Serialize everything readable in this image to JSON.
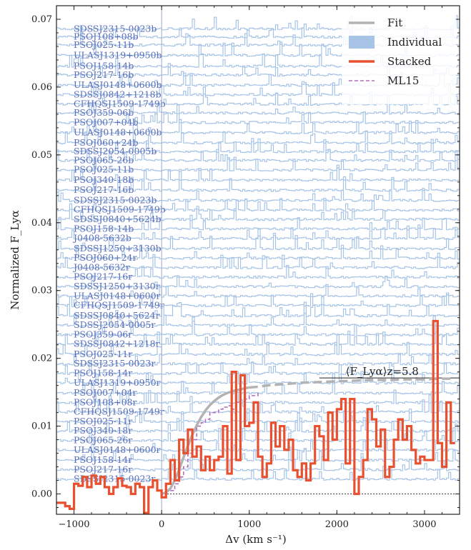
{
  "chart_data": {
    "type": "line",
    "xlabel": "Δv (km s⁻¹)",
    "ylabel": "Normalized F_Lyα",
    "xlim": [
      -1200,
      3400
    ],
    "ylim": [
      -0.003,
      0.072
    ],
    "xticks": [
      -1000,
      0,
      1000,
      2000,
      3000
    ],
    "xtick_labels": [
      "−1000",
      "0",
      "1000",
      "2000",
      "3000"
    ],
    "yticks": [
      0.0,
      0.01,
      0.02,
      0.03,
      0.04,
      0.05,
      0.06,
      0.07
    ],
    "ytick_labels": [
      "0.00",
      "0.01",
      "0.02",
      "0.03",
      "0.04",
      "0.05",
      "0.06",
      "0.07"
    ],
    "grid": false,
    "legend": {
      "placement": "top-right",
      "entries": [
        {
          "label": "Fit",
          "color": "#b3b3b3",
          "style": "solid-thick"
        },
        {
          "label": "Individual",
          "color": "#a7c4e6",
          "style": "filled"
        },
        {
          "label": "Stacked",
          "color": "#e8502f",
          "style": "solid-thick"
        },
        {
          "label": "ML15",
          "color": "#b36fbe",
          "style": "dashed"
        }
      ]
    },
    "annotation": {
      "text": "⟨F_Lyα⟩z=5.8",
      "value": 0.0171,
      "x_from": 1800,
      "x_to": 3400
    },
    "colors": {
      "stacked": "#e8502f",
      "fit": "#b3b3b3",
      "individual": "#a7c4e6",
      "ml15": "#b36fbe",
      "label": "#5b6fb8"
    },
    "individual_spectra": [
      {
        "label": "SDSSJ2315-0023b",
        "offset": 0.0686
      },
      {
        "label": "PSOJ108+08b",
        "offset": 0.0674
      },
      {
        "label": "PSOJ025-11b",
        "offset": 0.0662
      },
      {
        "label": "ULASJ1319+0950b",
        "offset": 0.0647
      },
      {
        "label": "PSOJ158-14b",
        "offset": 0.0631
      },
      {
        "label": "PSOJ217-16b",
        "offset": 0.0618
      },
      {
        "label": "ULASJ0148+0600b",
        "offset": 0.0603
      },
      {
        "label": "SDSSJ0842+1218b",
        "offset": 0.0589
      },
      {
        "label": "CFHQSJ1509-1749b",
        "offset": 0.0575
      },
      {
        "label": "PSOJ359-06b",
        "offset": 0.0562
      },
      {
        "label": "PSOJ007+04b",
        "offset": 0.0548
      },
      {
        "label": "ULASJ0148+0600b",
        "offset": 0.0533
      },
      {
        "label": "PSOJ060+24b",
        "offset": 0.0518
      },
      {
        "label": "SDSSJ2054-0005b",
        "offset": 0.0505
      },
      {
        "label": "PSOJ065-26b",
        "offset": 0.0492
      },
      {
        "label": "PSOJ025-11b",
        "offset": 0.0478
      },
      {
        "label": "PSOJ340-18b",
        "offset": 0.0463
      },
      {
        "label": "PSOJ217-16b",
        "offset": 0.0448
      },
      {
        "label": "SDSSJ2315-0023b",
        "offset": 0.0433
      },
      {
        "label": "CFHQSJ1509-1749b",
        "offset": 0.0419
      },
      {
        "label": "SDSSJ0840+5624b",
        "offset": 0.0405
      },
      {
        "label": "PSOJ158-14b",
        "offset": 0.0391
      },
      {
        "label": "J0408-5632b",
        "offset": 0.0377
      },
      {
        "label": "SDSSJ1250+3130b",
        "offset": 0.0362
      },
      {
        "label": "PSOJ060+24r",
        "offset": 0.0348
      },
      {
        "label": "J0408-5632r",
        "offset": 0.0334
      },
      {
        "label": "PSOJ217-16r",
        "offset": 0.032
      },
      {
        "label": "SDSSJ1250+3130r",
        "offset": 0.0306
      },
      {
        "label": "ULASJ0148+0600r",
        "offset": 0.0292
      },
      {
        "label": "CFHQSJ1509-1749r",
        "offset": 0.0278
      },
      {
        "label": "SDSSJ0840+5624r",
        "offset": 0.0263
      },
      {
        "label": "SDSSJ2054-0005r",
        "offset": 0.0249
      },
      {
        "label": "PSOJ359-06r",
        "offset": 0.0235
      },
      {
        "label": "SDSSJ0842+1218r",
        "offset": 0.0221
      },
      {
        "label": "PSOJ025-11r",
        "offset": 0.0206
      },
      {
        "label": "SDSSJ2315-0023r",
        "offset": 0.0192
      },
      {
        "label": "PSOJ158-14r",
        "offset": 0.0178
      },
      {
        "label": "ULASJ1319+0950r",
        "offset": 0.0164
      },
      {
        "label": "PSOJ007+04r",
        "offset": 0.0149
      },
      {
        "label": "PSOJ108+08r",
        "offset": 0.0135
      },
      {
        "label": "CFHQSJ1509-1749r",
        "offset": 0.0121
      },
      {
        "label": "PSOJ025-11r",
        "offset": 0.0107
      },
      {
        "label": "PSOJ340-18r",
        "offset": 0.0093
      },
      {
        "label": "PSOJ065-26r",
        "offset": 0.0079
      },
      {
        "label": "ULASJ0148+0600r",
        "offset": 0.0065
      },
      {
        "label": "PSOJ158-14r",
        "offset": 0.005
      },
      {
        "label": "PSOJ217-16r",
        "offset": 0.0036
      },
      {
        "label": "SDSSJ2315-0023r",
        "offset": 0.0022
      }
    ],
    "stacked": {
      "name": "Stacked",
      "x": [
        -1200,
        -1150,
        -1100,
        -1050,
        -1000,
        -950,
        -900,
        -850,
        -800,
        -750,
        -700,
        -650,
        -600,
        -550,
        -500,
        -450,
        -400,
        -350,
        -300,
        -250,
        -200,
        -150,
        -100,
        -50,
        0,
        50,
        100,
        150,
        200,
        250,
        300,
        350,
        400,
        450,
        500,
        550,
        600,
        650,
        700,
        750,
        800,
        850,
        900,
        950,
        1000,
        1050,
        1100,
        1150,
        1200,
        1250,
        1300,
        1350,
        1400,
        1450,
        1500,
        1550,
        1600,
        1650,
        1700,
        1750,
        1800,
        1850,
        1900,
        1950,
        2000,
        2050,
        2100,
        2150,
        2200,
        2250,
        2300,
        2350,
        2400,
        2450,
        2500,
        2550,
        2600,
        2650,
        2700,
        2750,
        2800,
        2850,
        2900,
        2950,
        3000,
        3050,
        3100,
        3150,
        3200,
        3250,
        3300
      ],
      "y": [
        -0.0013,
        -0.0013,
        -0.0018,
        -0.0022,
        0.0015,
        0.0012,
        0.0025,
        0.001,
        0.0027,
        0.0015,
        0.0025,
        0.001,
        0.0,
        0.001,
        0.0023,
        0.0012,
        0.001,
        0.0,
        0.0015,
        0.001,
        -0.0028,
        0.001,
        0.002,
        0.0005,
        -0.0005,
        0.0015,
        0.005,
        0.002,
        0.008,
        0.006,
        0.0095,
        0.0055,
        0.007,
        0.0035,
        0.0055,
        0.0035,
        0.005,
        0.0055,
        0.01,
        0.003,
        0.018,
        0.005,
        0.0175,
        0.01,
        0.0105,
        0.0135,
        0.0055,
        0.0025,
        0.0045,
        0.0105,
        0.007,
        0.01,
        0.0065,
        0.008,
        0.0035,
        0.0025,
        0.0045,
        0.002,
        0.0045,
        0.01,
        0.0085,
        0.005,
        0.012,
        0.008,
        0.0125,
        0.014,
        0.0045,
        0.014,
        0.0,
        0.0025,
        0.005,
        0.0125,
        0.011,
        0.007,
        0.0095,
        0.0025,
        0.004,
        0.008,
        0.011,
        0.008,
        0.01,
        0.0065,
        0.0045,
        0.0055,
        0.005,
        0.005,
        0.0255,
        0.0075,
        0.004,
        0.0135,
        0.0075
      ]
    },
    "fit": {
      "name": "Fit",
      "x": [
        0,
        50,
        100,
        150,
        200,
        250,
        300,
        350,
        400,
        450,
        500,
        550,
        600,
        650,
        700,
        750,
        800,
        850,
        900,
        950,
        1000,
        1100,
        1200,
        1400,
        1600,
        1800,
        2000,
        2200,
        2400,
        2600,
        2800,
        3000,
        3200,
        3300
      ],
      "y": [
        0.0,
        0.0002,
        0.0008,
        0.002,
        0.0036,
        0.0054,
        0.0071,
        0.0087,
        0.0101,
        0.0113,
        0.0123,
        0.0131,
        0.0137,
        0.0142,
        0.0146,
        0.0149,
        0.0151,
        0.0153,
        0.0154,
        0.0156,
        0.0157,
        0.0158,
        0.016,
        0.0162,
        0.0164,
        0.0165,
        0.0166,
        0.0167,
        0.0168,
        0.0168,
        0.0169,
        0.0169,
        0.017,
        0.017
      ]
    },
    "ml15": {
      "name": "ML15",
      "x": [
        100,
        150,
        200,
        250,
        300,
        350,
        400,
        450,
        500,
        550,
        600,
        650,
        700,
        750,
        800,
        850,
        900,
        950,
        1000,
        1050,
        1100
      ],
      "y": [
        0.0005,
        0.0015,
        0.0025,
        0.004,
        0.006,
        0.008,
        0.01,
        0.0105,
        0.011,
        0.012,
        0.012,
        0.0125,
        0.0128,
        0.013,
        0.0125,
        0.0135,
        0.014,
        0.014,
        0.0145,
        0.0145,
        0.015
      ]
    },
    "zero_line": 0.0,
    "vertical_line_x": 0
  }
}
